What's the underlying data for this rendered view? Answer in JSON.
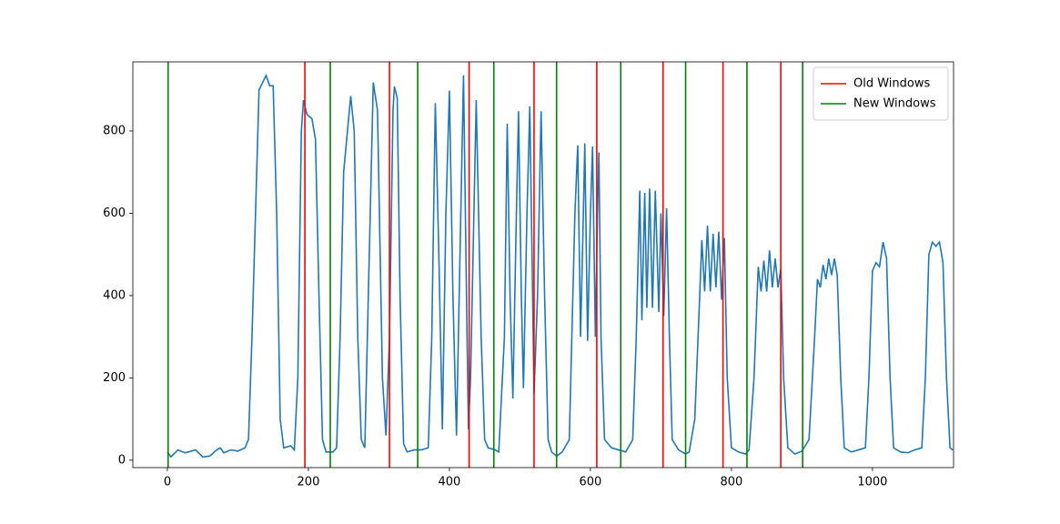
{
  "chart_data": {
    "type": "line",
    "x": [
      0,
      5,
      15,
      25,
      40,
      50,
      60,
      70,
      75,
      80,
      90,
      100,
      110,
      115,
      120,
      130,
      140,
      145,
      150,
      155,
      160,
      165,
      175,
      180,
      185,
      190,
      193,
      198,
      205,
      210,
      215,
      220,
      225,
      235,
      240,
      245,
      250,
      260,
      265,
      270,
      275,
      280,
      285,
      292,
      298,
      305,
      310,
      315,
      320,
      322,
      326,
      330,
      335,
      340,
      350,
      360,
      370,
      375,
      380,
      385,
      390,
      395,
      400,
      405,
      410,
      415,
      420,
      425,
      427,
      430,
      438,
      445,
      450,
      455,
      465,
      470,
      478,
      482,
      486,
      490,
      495,
      498,
      502,
      505,
      510,
      514,
      518,
      520,
      525,
      530,
      535,
      540,
      545,
      552,
      560,
      570,
      578,
      582,
      586,
      590,
      592,
      596,
      600,
      603,
      607,
      610,
      612,
      615,
      620,
      630,
      640,
      650,
      660,
      665,
      670,
      673,
      677,
      680,
      684,
      688,
      692,
      697,
      700,
      704,
      708,
      712,
      716,
      725,
      735,
      740,
      748,
      755,
      758,
      762,
      766,
      770,
      774,
      778,
      782,
      786,
      790,
      794,
      800,
      810,
      820,
      825,
      832,
      838,
      842,
      846,
      850,
      854,
      858,
      862,
      866,
      870,
      874,
      880,
      890,
      900,
      910,
      918,
      922,
      926,
      930,
      934,
      938,
      942,
      946,
      950,
      955,
      960,
      970,
      980,
      990,
      995,
      1000,
      1005,
      1010,
      1015,
      1020,
      1025,
      1030,
      1040,
      1050,
      1060,
      1070,
      1075,
      1080,
      1085,
      1090,
      1095,
      1100,
      1105,
      1110,
      1114
    ],
    "series": [
      {
        "color": "#1f77b4",
        "values": [
          20,
          8,
          25,
          18,
          25,
          8,
          10,
          25,
          30,
          18,
          25,
          22,
          30,
          50,
          300,
          900,
          935,
          910,
          910,
          600,
          100,
          30,
          35,
          25,
          200,
          800,
          875,
          840,
          830,
          780,
          400,
          50,
          20,
          20,
          30,
          300,
          700,
          885,
          800,
          300,
          50,
          30,
          400,
          918,
          850,
          200,
          60,
          300,
          850,
          908,
          880,
          400,
          40,
          20,
          25,
          25,
          30,
          300,
          868,
          500,
          75,
          600,
          898,
          400,
          60,
          500,
          935,
          300,
          75,
          200,
          875,
          300,
          50,
          30,
          25,
          20,
          300,
          818,
          400,
          150,
          600,
          848,
          400,
          175,
          600,
          860,
          400,
          160,
          400,
          848,
          400,
          50,
          20,
          10,
          20,
          50,
          600,
          765,
          300,
          600,
          770,
          290,
          600,
          762,
          300,
          600,
          748,
          300,
          50,
          30,
          25,
          20,
          50,
          300,
          655,
          340,
          650,
          370,
          660,
          370,
          655,
          360,
          600,
          350,
          612,
          300,
          50,
          25,
          15,
          20,
          100,
          400,
          535,
          410,
          570,
          410,
          550,
          420,
          555,
          390,
          540,
          200,
          30,
          20,
          15,
          25,
          200,
          470,
          410,
          485,
          410,
          510,
          420,
          490,
          420,
          465,
          200,
          30,
          15,
          22,
          50,
          300,
          440,
          420,
          475,
          440,
          490,
          450,
          490,
          450,
          200,
          30,
          20,
          25,
          30,
          200,
          460,
          480,
          470,
          530,
          490,
          200,
          30,
          20,
          18,
          25,
          30,
          200,
          500,
          530,
          520,
          530,
          480,
          200,
          30,
          25
        ]
      }
    ],
    "vertical_lines": [
      {
        "name": "Old Windows",
        "color": "red",
        "x": [
          195,
          315,
          428,
          520,
          609,
          703,
          788,
          870
        ]
      },
      {
        "name": "New Windows",
        "color": "green",
        "x": [
          1,
          231,
          355,
          463,
          552,
          643,
          735,
          822,
          901
        ]
      }
    ],
    "xlim": [
      -49,
      1115
    ],
    "xticks": [
      0,
      200,
      400,
      600,
      800,
      1000
    ],
    "ylim": [
      -18,
      968
    ],
    "yticks": [
      0,
      200,
      400,
      600,
      800
    ],
    "legend": "upper right"
  }
}
